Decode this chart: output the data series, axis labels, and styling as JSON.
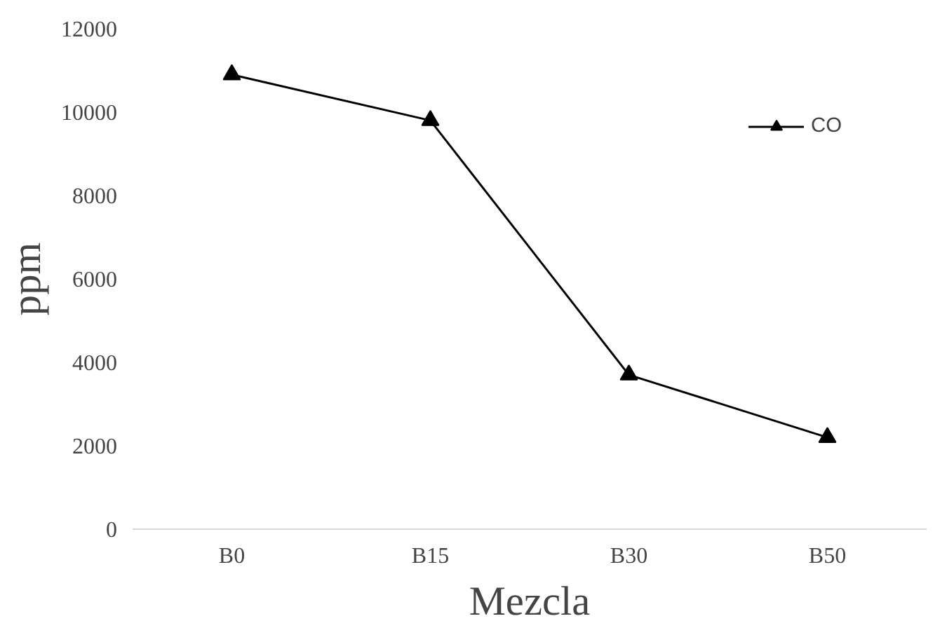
{
  "chart_data": {
    "type": "line",
    "xlabel": "Mezcla",
    "ylabel": "ppm",
    "categories": [
      "B0",
      "B15",
      "B30",
      "B50"
    ],
    "series": [
      {
        "name": "CO",
        "color": "#000000",
        "values": [
          10900,
          9800,
          3700,
          2200
        ]
      }
    ],
    "ylim": [
      0,
      12000
    ],
    "yticks": [
      0,
      2000,
      4000,
      6000,
      8000,
      10000,
      12000
    ],
    "marker": "triangle",
    "line_style": "solid",
    "legend": "top right"
  }
}
